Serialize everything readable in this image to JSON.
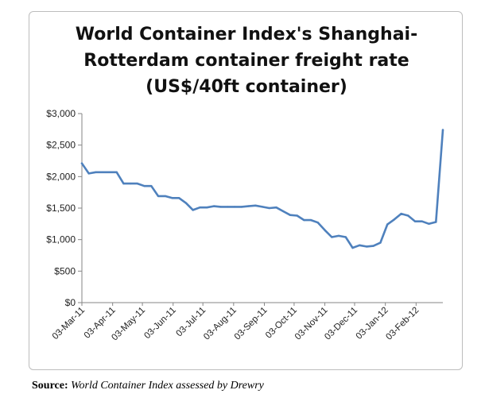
{
  "chart_data": {
    "type": "line",
    "title_lines": [
      "World Container Index's Shanghai-",
      "Rotterdam container freight rate",
      "(US$/40ft container)"
    ],
    "xlabel": "",
    "ylabel": "",
    "ylim": [
      0,
      3000
    ],
    "y_ticks": [
      0,
      500,
      1000,
      1500,
      2000,
      2500,
      3000
    ],
    "y_tick_labels": [
      "$0",
      "$500",
      "$1,000",
      "$1,500",
      "$2,000",
      "$2,500",
      "$3,000"
    ],
    "x_tick_labels": [
      "03-Mar-11",
      "03-Apr-11",
      "03-May-11",
      "03-Jun-11",
      "03-Jul-11",
      "03-Aug-11",
      "03-Sep-11",
      "03-Oct-11",
      "03-Nov-11",
      "03-Dec-11",
      "03-Jan-12",
      "03-Feb-12"
    ],
    "grid": false,
    "line_color": "#4f81bd",
    "series": [
      {
        "x": [
          "2011-03-03",
          "2011-03-10",
          "2011-03-17",
          "2011-03-24",
          "2011-03-31",
          "2011-04-07",
          "2011-04-14",
          "2011-04-21",
          "2011-04-28",
          "2011-05-05",
          "2011-05-12",
          "2011-05-19",
          "2011-05-26",
          "2011-06-02",
          "2011-06-09",
          "2011-06-16",
          "2011-06-23",
          "2011-06-30",
          "2011-07-07",
          "2011-07-14",
          "2011-07-21",
          "2011-07-28",
          "2011-08-04",
          "2011-08-11",
          "2011-08-18",
          "2011-08-25",
          "2011-09-01",
          "2011-09-08",
          "2011-09-15",
          "2011-09-22",
          "2011-09-29",
          "2011-10-06",
          "2011-10-13",
          "2011-10-20",
          "2011-10-27",
          "2011-11-03",
          "2011-11-10",
          "2011-11-17",
          "2011-11-24",
          "2011-12-01",
          "2011-12-08",
          "2011-12-15",
          "2011-12-22",
          "2011-12-29",
          "2012-01-05",
          "2012-01-12",
          "2012-01-19",
          "2012-01-26",
          "2012-02-02",
          "2012-02-09",
          "2012-02-16",
          "2012-02-23",
          "2012-03-01"
        ],
        "values": [
          2210,
          2050,
          2070,
          2070,
          2070,
          2070,
          1890,
          1890,
          1890,
          1850,
          1850,
          1690,
          1690,
          1660,
          1660,
          1580,
          1470,
          1510,
          1510,
          1530,
          1520,
          1520,
          1520,
          1520,
          1530,
          1540,
          1520,
          1500,
          1510,
          1450,
          1390,
          1380,
          1310,
          1310,
          1270,
          1150,
          1040,
          1060,
          1040,
          870,
          910,
          890,
          900,
          950,
          1240,
          1320,
          1410,
          1380,
          1290,
          1290,
          1250,
          1280,
          2740
        ]
      }
    ]
  },
  "source": {
    "label": "Source:",
    "text": "World Container Index assessed by Drewry"
  }
}
